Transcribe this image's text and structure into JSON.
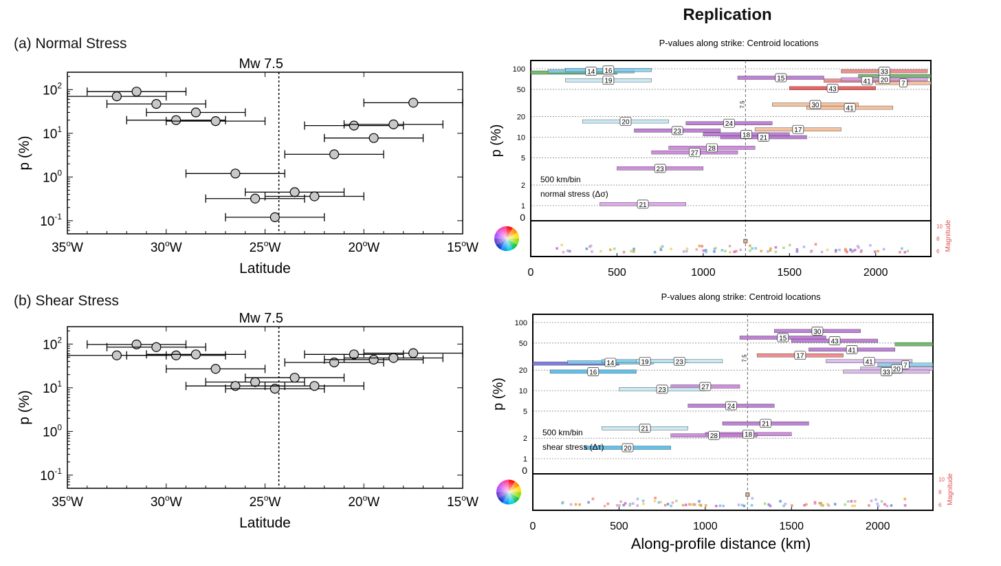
{
  "figure": {
    "title": "Replication",
    "panel_a_label": "(a) Normal Stress",
    "panel_b_label": "(b) Shear Stress"
  },
  "chart_data": [
    {
      "id": "left_normal",
      "type": "scatter",
      "title": "Mw 7.5",
      "xlabel": "Latitude",
      "ylabel": "p (%)",
      "y_scale": "log",
      "xlim": [
        -35,
        -15
      ],
      "ylim": [
        0.05,
        250
      ],
      "x_tick_labels": [
        "35°W",
        "30°W",
        "25°W",
        "20°W",
        "15°W"
      ],
      "y_tick_labels": [
        "10^-1",
        "10^0",
        "10^1",
        "10^2"
      ],
      "reference_line_x": -24.3,
      "points": [
        {
          "x": -31.5,
          "y": 90,
          "xerr": 2.5
        },
        {
          "x": -32.5,
          "y": 70,
          "xerr": 2.5
        },
        {
          "x": -30.5,
          "y": 47,
          "xerr": 2.5
        },
        {
          "x": -28.5,
          "y": 30,
          "xerr": 2.5
        },
        {
          "x": -29.5,
          "y": 20,
          "xerr": 2.5
        },
        {
          "x": -27.5,
          "y": 19,
          "xerr": 2.5
        },
        {
          "x": -17.5,
          "y": 50,
          "xerr": 2.5
        },
        {
          "x": -20.5,
          "y": 15,
          "xerr": 2.5
        },
        {
          "x": -18.5,
          "y": 16,
          "xerr": 2.5
        },
        {
          "x": -19.5,
          "y": 7.8,
          "xerr": 2.5
        },
        {
          "x": -21.5,
          "y": 3.3,
          "xerr": 2.5
        },
        {
          "x": -26.5,
          "y": 1.2,
          "xerr": 2.5
        },
        {
          "x": -23.5,
          "y": 0.45,
          "xerr": 2.5
        },
        {
          "x": -22.5,
          "y": 0.36,
          "xerr": 2.5
        },
        {
          "x": -25.5,
          "y": 0.32,
          "xerr": 2.5
        },
        {
          "x": -24.5,
          "y": 0.12,
          "xerr": 2.5
        }
      ]
    },
    {
      "id": "left_shear",
      "type": "scatter",
      "title": "Mw 7.5",
      "xlabel": "Latitude",
      "ylabel": "p (%)",
      "y_scale": "log",
      "xlim": [
        -35,
        -15
      ],
      "ylim": [
        0.05,
        250
      ],
      "x_tick_labels": [
        "35°W",
        "30°W",
        "25°W",
        "20°W",
        "15°W"
      ],
      "y_tick_labels": [
        "10^-1",
        "10^0",
        "10^1",
        "10^2"
      ],
      "reference_line_x": -24.3,
      "points": [
        {
          "x": -31.5,
          "y": 98,
          "xerr": 2.5
        },
        {
          "x": -30.5,
          "y": 85,
          "xerr": 2.5
        },
        {
          "x": -32.5,
          "y": 55,
          "xerr": 2.5
        },
        {
          "x": -29.5,
          "y": 55,
          "xerr": 2.5
        },
        {
          "x": -28.5,
          "y": 58,
          "xerr": 2.5
        },
        {
          "x": -27.5,
          "y": 27,
          "xerr": 2.5
        },
        {
          "x": -25.5,
          "y": 13.5,
          "xerr": 2.5
        },
        {
          "x": -26.5,
          "y": 11,
          "xerr": 2.5
        },
        {
          "x": -24.5,
          "y": 9.5,
          "xerr": 2.5
        },
        {
          "x": -23.5,
          "y": 17,
          "xerr": 2.5
        },
        {
          "x": -22.5,
          "y": 11,
          "xerr": 2.5
        },
        {
          "x": -21.5,
          "y": 38,
          "xerr": 2.5
        },
        {
          "x": -20.5,
          "y": 58,
          "xerr": 2.5
        },
        {
          "x": -19.5,
          "y": 44,
          "xerr": 2.5
        },
        {
          "x": -18.5,
          "y": 48,
          "xerr": 2.5
        },
        {
          "x": -17.5,
          "y": 62,
          "xerr": 2.5
        }
      ]
    },
    {
      "id": "right_normal",
      "type": "bar",
      "title": "P-values along strike: Centroid locations",
      "xlabel": "",
      "ylabel": "p (%)",
      "xlim": [
        0,
        2320
      ],
      "x_ticks": [
        0,
        500,
        1000,
        1500,
        2000
      ],
      "y_ticks": [
        0,
        1,
        2,
        5,
        10,
        20,
        50,
        100
      ],
      "reference_line_x": 1245,
      "reference_line_label": "7.5",
      "annotation_lines": [
        "500 km/bin",
        "normal stress (Δσ)"
      ],
      "magnitude_axis_label": "Magnitude",
      "magnitude_ticks": [
        6,
        8,
        10
      ],
      "segments": [
        {
          "x0": 0,
          "x1": 500,
          "y": 88,
          "color": "#5fb05a",
          "label": ""
        },
        {
          "x0": 100,
          "x1": 600,
          "y": 92,
          "color": "#7ccff0",
          "label": "14"
        },
        {
          "x0": 200,
          "x1": 700,
          "y": 96,
          "color": "#7ccff0",
          "label": "16"
        },
        {
          "x0": 200,
          "x1": 700,
          "y": 68,
          "color": "#bfe6f5",
          "label": "19"
        },
        {
          "x0": 1200,
          "x1": 1700,
          "y": 74,
          "color": "#b46cd0",
          "label": "15"
        },
        {
          "x0": 1800,
          "x1": 2300,
          "y": 92,
          "color": "#f07a7a",
          "label": "33"
        },
        {
          "x0": 1900,
          "x1": 2320,
          "y": 78,
          "color": "#5fb05a",
          "label": ""
        },
        {
          "x0": 1700,
          "x1": 2200,
          "y": 67,
          "color": "#f07a7a",
          "label": "41"
        },
        {
          "x0": 1800,
          "x1": 2300,
          "y": 70,
          "color": "#d79be8",
          "label": "20"
        },
        {
          "x0": 2000,
          "x1": 2320,
          "y": 62,
          "color": "#f5b98f",
          "label": "7"
        },
        {
          "x0": 1500,
          "x1": 2000,
          "y": 52,
          "color": "#e84a4a",
          "label": "43"
        },
        {
          "x0": 1400,
          "x1": 1900,
          "y": 30,
          "color": "#f5b98f",
          "label": "30"
        },
        {
          "x0": 1600,
          "x1": 2100,
          "y": 27,
          "color": "#f5b98f",
          "label": "41"
        },
        {
          "x0": 300,
          "x1": 800,
          "y": 17,
          "color": "#bfe6f5",
          "label": "20"
        },
        {
          "x0": 900,
          "x1": 1400,
          "y": 16,
          "color": "#b46cd0",
          "label": "24"
        },
        {
          "x0": 600,
          "x1": 1100,
          "y": 12.5,
          "color": "#b46cd0",
          "label": "23"
        },
        {
          "x0": 1300,
          "x1": 1800,
          "y": 13,
          "color": "#f5b98f",
          "label": "17"
        },
        {
          "x0": 1100,
          "x1": 1600,
          "y": 10,
          "color": "#b46cd0",
          "label": "21"
        },
        {
          "x0": 1000,
          "x1": 1500,
          "y": 11,
          "color": "#b46cd0",
          "label": "18"
        },
        {
          "x0": 800,
          "x1": 1300,
          "y": 7,
          "color": "#c77ad8",
          "label": "28"
        },
        {
          "x0": 700,
          "x1": 1200,
          "y": 6,
          "color": "#c77ad8",
          "label": "27"
        },
        {
          "x0": 500,
          "x1": 1000,
          "y": 3.5,
          "color": "#c77ad8",
          "label": "23"
        },
        {
          "x0": 400,
          "x1": 900,
          "y": 1.05,
          "color": "#d79be8",
          "label": "21"
        }
      ]
    },
    {
      "id": "right_shear",
      "type": "bar",
      "title": "P-values along strike: Centroid locations",
      "xlabel": "Along-profile distance (km)",
      "ylabel": "p (%)",
      "xlim": [
        0,
        2320
      ],
      "x_ticks": [
        0,
        500,
        1000,
        1500,
        2000
      ],
      "y_ticks": [
        0,
        1,
        2,
        5,
        10,
        20,
        50,
        100
      ],
      "reference_line_x": 1245,
      "reference_line_label": "7.5",
      "annotation_lines": [
        "500 km/bin",
        "shear stress (Δτ)"
      ],
      "magnitude_axis_label": "Magnitude",
      "magnitude_ticks": [
        6,
        8,
        10
      ],
      "segments": [
        {
          "x0": 1400,
          "x1": 1900,
          "y": 75,
          "color": "#b46cd0",
          "label": "30"
        },
        {
          "x0": 1200,
          "x1": 1700,
          "y": 60,
          "color": "#b46cd0",
          "label": "15"
        },
        {
          "x0": 1500,
          "x1": 2000,
          "y": 54,
          "color": "#b46cd0",
          "label": "43"
        },
        {
          "x0": 2100,
          "x1": 2320,
          "y": 48,
          "color": "#5fb05a",
          "label": ""
        },
        {
          "x0": 1600,
          "x1": 2100,
          "y": 40,
          "color": "#b46cd0",
          "label": "41"
        },
        {
          "x0": 1300,
          "x1": 1800,
          "y": 33,
          "color": "#f07a7a",
          "label": "17"
        },
        {
          "x0": 0,
          "x1": 500,
          "y": 25,
          "color": "#6a6ae0",
          "label": ""
        },
        {
          "x0": 200,
          "x1": 700,
          "y": 26,
          "color": "#7ccff0",
          "label": "14"
        },
        {
          "x0": 400,
          "x1": 900,
          "y": 27,
          "color": "#7ccff0",
          "label": "19"
        },
        {
          "x0": 600,
          "x1": 1100,
          "y": 27,
          "color": "#bfe6f5",
          "label": "23"
        },
        {
          "x0": 1700,
          "x1": 2200,
          "y": 27,
          "color": "#d7b3ea",
          "label": "41"
        },
        {
          "x0": 2000,
          "x1": 2320,
          "y": 24,
          "color": "#7ccff0",
          "label": "7"
        },
        {
          "x0": 1900,
          "x1": 2320,
          "y": 21,
          "color": "#d7b3ea",
          "label": "20"
        },
        {
          "x0": 1800,
          "x1": 2300,
          "y": 19,
          "color": "#d7b3ea",
          "label": "33"
        },
        {
          "x0": 100,
          "x1": 600,
          "y": 19,
          "color": "#45b8e8",
          "label": "16"
        },
        {
          "x0": 800,
          "x1": 1200,
          "y": 11.5,
          "color": "#c77ad8",
          "label": "27"
        },
        {
          "x0": 500,
          "x1": 1000,
          "y": 10.5,
          "color": "#bfe6f5",
          "label": "23"
        },
        {
          "x0": 900,
          "x1": 1400,
          "y": 6,
          "color": "#b46cd0",
          "label": "24"
        },
        {
          "x0": 1100,
          "x1": 1600,
          "y": 3.3,
          "color": "#b46cd0",
          "label": "21"
        },
        {
          "x0": 400,
          "x1": 900,
          "y": 2.8,
          "color": "#bfe6f5",
          "label": "21"
        },
        {
          "x0": 1000,
          "x1": 1500,
          "y": 2.3,
          "color": "#c77ad8",
          "label": "18"
        },
        {
          "x0": 800,
          "x1": 1300,
          "y": 2.2,
          "color": "#c77ad8",
          "label": "28"
        },
        {
          "x0": 300,
          "x1": 800,
          "y": 1.45,
          "color": "#45b8e8",
          "label": "20"
        }
      ]
    }
  ]
}
